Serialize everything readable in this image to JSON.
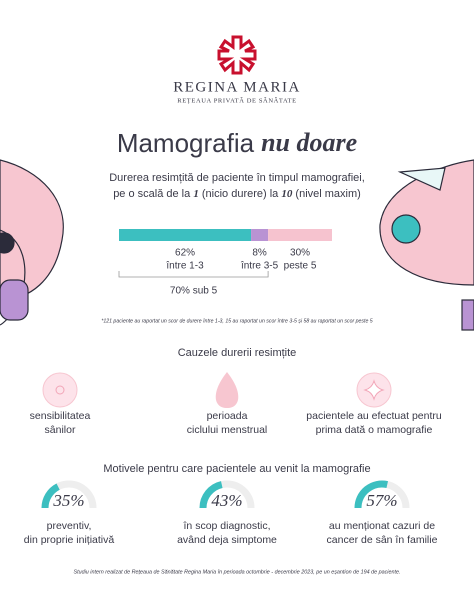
{
  "header": {
    "brand": "REGINA MARIA",
    "tagline": "REȚEAUA PRIVATĂ DE SĂNĂTATE"
  },
  "title": {
    "regular": "Mamografia",
    "emphasis": "nu doare"
  },
  "subtitle": {
    "line1": "Durerea resimțită de paciente în timpul mamografiei,",
    "line2": [
      "pe o scală de la ",
      "1",
      " (nicio durere) la ",
      "10",
      " (nivel maxim)"
    ]
  },
  "pain_bar": {
    "segments": [
      {
        "value": 62,
        "label": "62%",
        "caption": "între 1-3",
        "color": "#3cbfc0"
      },
      {
        "value": 8,
        "label": "8%",
        "caption": "între 3-5",
        "color": "#b993d3"
      },
      {
        "value": 30,
        "label": "30%",
        "caption": "peste 5",
        "color": "#f6c3cf"
      }
    ],
    "summary": "70% sub 5"
  },
  "footnote": "*121 paciente au raportat un scor de durere între 1-3, 15 au raportat un scor între 3-5 și 58 au raportat un scor peste 5",
  "causes": {
    "title": "Cauzele durerii resimțite",
    "items": [
      {
        "lines": [
          "sensibilitatea",
          "sânilor"
        ]
      },
      {
        "lines": [
          "perioada",
          "ciclului menstrual"
        ]
      },
      {
        "lines": [
          "pacientele au efectuat pentru",
          "prima dată o mamografie"
        ]
      }
    ]
  },
  "reasons": {
    "title": "Motivele pentru care pacientele au venit la mamografie",
    "color": "#3cbfc0",
    "items": [
      {
        "value": 35,
        "label": "35%",
        "lines": [
          "preventiv,",
          "din proprie inițiativă"
        ]
      },
      {
        "value": 43,
        "label": "43%",
        "lines": [
          "în scop diagnostic,",
          "având deja simptome"
        ]
      },
      {
        "value": 57,
        "label": "57%",
        "lines": [
          "au menționat cazuri de",
          "cancer de sân în familie"
        ]
      }
    ]
  },
  "footer": "Studiu intern realizat de Rețeaua de Sănătate Regina Maria în perioada octombrie - decembrie 2023, pe un eșantion de 194 de paciente."
}
